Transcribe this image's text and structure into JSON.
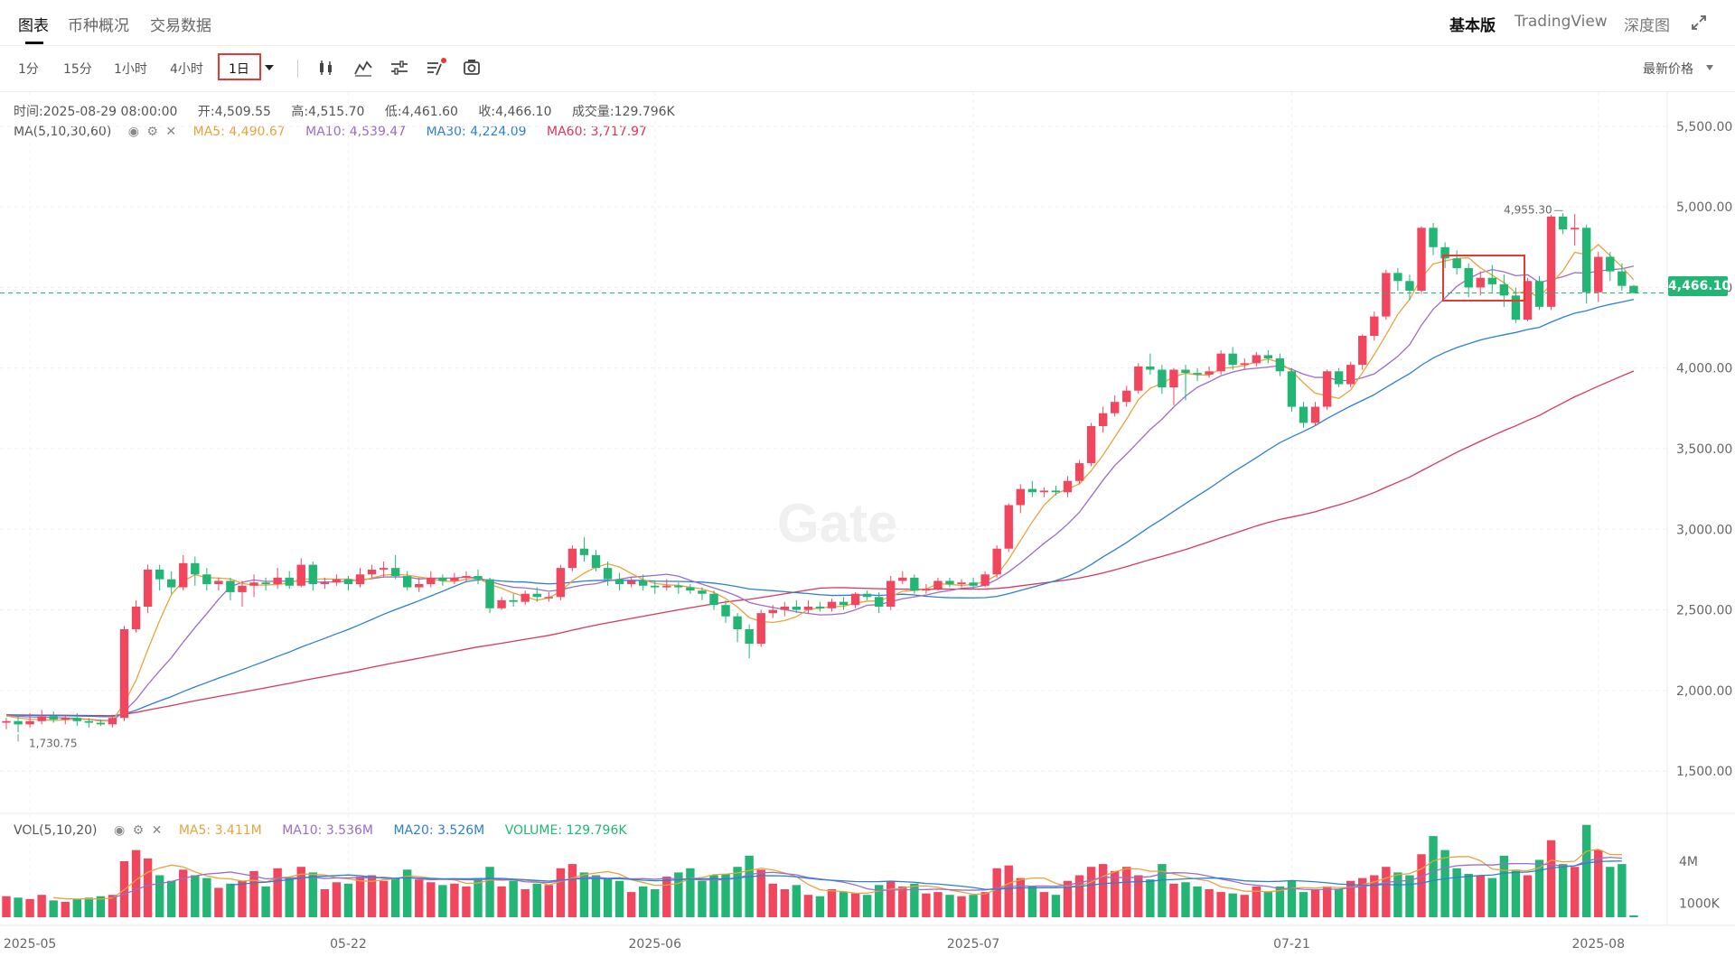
{
  "nav": {
    "tabs": [
      {
        "label": "图表",
        "active": true
      },
      {
        "label": "币种概况",
        "active": false
      },
      {
        "label": "交易数据",
        "active": false
      }
    ],
    "right": {
      "basic": "基本版",
      "tv": "TradingView",
      "depth": "深度图"
    }
  },
  "toolbar": {
    "timeframes": [
      "1分",
      "15分",
      "1小时",
      "4小时",
      "1日"
    ],
    "selected_timeframe": "1日",
    "price_type": "最新价格"
  },
  "info": {
    "time_label": "时间:",
    "time": "2025-08-29 08:00:00",
    "open_label": "开:",
    "open": "4,509.55",
    "high_label": "高:",
    "high": "4,515.70",
    "low_label": "低:",
    "low": "4,461.60",
    "close_label": "收:",
    "close": "4,466.10",
    "volume_label": "成交量:",
    "volume": "129.796K",
    "ma_title": "MA(5,10,30,60)",
    "ma5": "MA5: 4,490.67",
    "ma10": "MA10: 4,539.47",
    "ma30": "MA30: 4,224.09",
    "ma60": "MA60: 3,717.97",
    "vol_title": "VOL(5,10,20)",
    "vol_ma5": "MA5: 3.411M",
    "vol_ma10": "MA10: 3.536M",
    "vol_ma20": "MA20: 3.526M",
    "vol_volume": "VOLUME: 129.796K"
  },
  "colors": {
    "up": "#f0475e",
    "down": "#22b573",
    "ma5": "#e8a33c",
    "ma10": "#9a6dc9",
    "ma30": "#2c7fd6",
    "ma60": "#d9375b"
  },
  "chart_data": {
    "type": "candlestick",
    "title": "",
    "x_ticks": [
      "2025-05",
      "05-22",
      "2025-06",
      "2025-07",
      "07-21",
      "2025-08"
    ],
    "y_ticks": [
      "5,500.00",
      "5,000.00",
      "4,500.00",
      "4,000.00",
      "3,500.00",
      "3,000.00",
      "2,500.00",
      "2,000.00",
      "1,500.00"
    ],
    "ylim": [
      1400,
      5600
    ],
    "vol_ticks": [
      "4M",
      "1000K"
    ],
    "last_price": "4,466.10",
    "annotations": {
      "high": "4,955.30",
      "low": "1,730.75"
    },
    "candles": [
      {
        "o": 1800,
        "c": 1810,
        "h": 1830,
        "l": 1760,
        "v": 1.5
      },
      {
        "o": 1810,
        "c": 1790,
        "h": 1840,
        "l": 1740,
        "v": 1.4
      },
      {
        "o": 1790,
        "c": 1810,
        "h": 1860,
        "l": 1770,
        "v": 1.3
      },
      {
        "o": 1810,
        "c": 1840,
        "h": 1880,
        "l": 1790,
        "v": 1.6
      },
      {
        "o": 1840,
        "c": 1820,
        "h": 1870,
        "l": 1800,
        "v": 1.2
      },
      {
        "o": 1820,
        "c": 1830,
        "h": 1850,
        "l": 1790,
        "v": 1.1
      },
      {
        "o": 1830,
        "c": 1810,
        "h": 1860,
        "l": 1780,
        "v": 1.3
      },
      {
        "o": 1810,
        "c": 1800,
        "h": 1830,
        "l": 1770,
        "v": 1.4
      },
      {
        "o": 1800,
        "c": 1790,
        "h": 1820,
        "l": 1780,
        "v": 1.5
      },
      {
        "o": 1790,
        "c": 1830,
        "h": 1850,
        "l": 1770,
        "v": 1.6
      },
      {
        "o": 1830,
        "c": 2380,
        "h": 2400,
        "l": 1810,
        "v": 4.0
      },
      {
        "o": 2380,
        "c": 2520,
        "h": 2560,
        "l": 2360,
        "v": 4.8
      },
      {
        "o": 2520,
        "c": 2750,
        "h": 2780,
        "l": 2480,
        "v": 4.2
      },
      {
        "o": 2750,
        "c": 2690,
        "h": 2780,
        "l": 2620,
        "v": 3.0
      },
      {
        "o": 2690,
        "c": 2640,
        "h": 2740,
        "l": 2600,
        "v": 2.6
      },
      {
        "o": 2640,
        "c": 2790,
        "h": 2840,
        "l": 2620,
        "v": 3.4
      },
      {
        "o": 2790,
        "c": 2720,
        "h": 2830,
        "l": 2650,
        "v": 3.0
      },
      {
        "o": 2720,
        "c": 2660,
        "h": 2760,
        "l": 2620,
        "v": 2.8
      },
      {
        "o": 2660,
        "c": 2680,
        "h": 2700,
        "l": 2620,
        "v": 2.1
      },
      {
        "o": 2680,
        "c": 2610,
        "h": 2700,
        "l": 2560,
        "v": 2.4
      },
      {
        "o": 2610,
        "c": 2650,
        "h": 2680,
        "l": 2520,
        "v": 2.6
      },
      {
        "o": 2650,
        "c": 2670,
        "h": 2720,
        "l": 2580,
        "v": 3.3
      },
      {
        "o": 2670,
        "c": 2660,
        "h": 2700,
        "l": 2620,
        "v": 2.2
      },
      {
        "o": 2660,
        "c": 2700,
        "h": 2760,
        "l": 2630,
        "v": 3.5
      },
      {
        "o": 2700,
        "c": 2650,
        "h": 2740,
        "l": 2630,
        "v": 2.8
      },
      {
        "o": 2650,
        "c": 2780,
        "h": 2820,
        "l": 2640,
        "v": 3.6
      },
      {
        "o": 2780,
        "c": 2660,
        "h": 2800,
        "l": 2620,
        "v": 3.2
      },
      {
        "o": 2660,
        "c": 2670,
        "h": 2700,
        "l": 2630,
        "v": 2.0
      },
      {
        "o": 2670,
        "c": 2690,
        "h": 2720,
        "l": 2650,
        "v": 2.5
      },
      {
        "o": 2690,
        "c": 2660,
        "h": 2710,
        "l": 2620,
        "v": 2.4
      },
      {
        "o": 2660,
        "c": 2720,
        "h": 2760,
        "l": 2640,
        "v": 2.9
      },
      {
        "o": 2720,
        "c": 2750,
        "h": 2780,
        "l": 2700,
        "v": 3.0
      },
      {
        "o": 2750,
        "c": 2760,
        "h": 2800,
        "l": 2700,
        "v": 2.6
      },
      {
        "o": 2760,
        "c": 2710,
        "h": 2840,
        "l": 2690,
        "v": 2.8
      },
      {
        "o": 2710,
        "c": 2640,
        "h": 2740,
        "l": 2620,
        "v": 3.4
      },
      {
        "o": 2640,
        "c": 2660,
        "h": 2700,
        "l": 2610,
        "v": 2.7
      },
      {
        "o": 2660,
        "c": 2700,
        "h": 2740,
        "l": 2640,
        "v": 2.5
      },
      {
        "o": 2700,
        "c": 2680,
        "h": 2720,
        "l": 2650,
        "v": 2.3
      },
      {
        "o": 2680,
        "c": 2700,
        "h": 2730,
        "l": 2660,
        "v": 2.4
      },
      {
        "o": 2700,
        "c": 2710,
        "h": 2740,
        "l": 2670,
        "v": 2.2
      },
      {
        "o": 2710,
        "c": 2690,
        "h": 2750,
        "l": 2660,
        "v": 2.8
      },
      {
        "o": 2690,
        "c": 2510,
        "h": 2700,
        "l": 2480,
        "v": 3.6
      },
      {
        "o": 2510,
        "c": 2560,
        "h": 2580,
        "l": 2500,
        "v": 2.2
      },
      {
        "o": 2560,
        "c": 2550,
        "h": 2600,
        "l": 2520,
        "v": 2.6
      },
      {
        "o": 2550,
        "c": 2600,
        "h": 2620,
        "l": 2530,
        "v": 2.0
      },
      {
        "o": 2600,
        "c": 2580,
        "h": 2640,
        "l": 2550,
        "v": 2.4
      },
      {
        "o": 2580,
        "c": 2580,
        "h": 2610,
        "l": 2550,
        "v": 2.3
      },
      {
        "o": 2580,
        "c": 2760,
        "h": 2780,
        "l": 2560,
        "v": 3.5
      },
      {
        "o": 2760,
        "c": 2880,
        "h": 2900,
        "l": 2740,
        "v": 3.8
      },
      {
        "o": 2880,
        "c": 2840,
        "h": 2950,
        "l": 2800,
        "v": 3.2
      },
      {
        "o": 2840,
        "c": 2760,
        "h": 2870,
        "l": 2740,
        "v": 3.0
      },
      {
        "o": 2760,
        "c": 2690,
        "h": 2800,
        "l": 2650,
        "v": 2.8
      },
      {
        "o": 2690,
        "c": 2660,
        "h": 2730,
        "l": 2620,
        "v": 2.6
      },
      {
        "o": 2660,
        "c": 2680,
        "h": 2700,
        "l": 2640,
        "v": 1.8
      },
      {
        "o": 2680,
        "c": 2650,
        "h": 2720,
        "l": 2620,
        "v": 2.2
      },
      {
        "o": 2650,
        "c": 2640,
        "h": 2680,
        "l": 2600,
        "v": 2.0
      },
      {
        "o": 2640,
        "c": 2650,
        "h": 2690,
        "l": 2620,
        "v": 2.9
      },
      {
        "o": 2650,
        "c": 2640,
        "h": 2670,
        "l": 2600,
        "v": 3.2
      },
      {
        "o": 2640,
        "c": 2620,
        "h": 2660,
        "l": 2600,
        "v": 3.5
      },
      {
        "o": 2620,
        "c": 2600,
        "h": 2640,
        "l": 2560,
        "v": 2.6
      },
      {
        "o": 2600,
        "c": 2530,
        "h": 2620,
        "l": 2500,
        "v": 3.0
      },
      {
        "o": 2530,
        "c": 2460,
        "h": 2560,
        "l": 2420,
        "v": 3.1
      },
      {
        "o": 2460,
        "c": 2380,
        "h": 2480,
        "l": 2300,
        "v": 3.6
      },
      {
        "o": 2380,
        "c": 2290,
        "h": 2410,
        "l": 2200,
        "v": 4.4
      },
      {
        "o": 2290,
        "c": 2480,
        "h": 2500,
        "l": 2270,
        "v": 3.4
      },
      {
        "o": 2480,
        "c": 2500,
        "h": 2530,
        "l": 2450,
        "v": 2.4
      },
      {
        "o": 2500,
        "c": 2520,
        "h": 2550,
        "l": 2460,
        "v": 2.0
      },
      {
        "o": 2520,
        "c": 2500,
        "h": 2560,
        "l": 2480,
        "v": 2.3
      },
      {
        "o": 2500,
        "c": 2520,
        "h": 2560,
        "l": 2480,
        "v": 1.6
      },
      {
        "o": 2520,
        "c": 2510,
        "h": 2550,
        "l": 2490,
        "v": 1.5
      },
      {
        "o": 2510,
        "c": 2550,
        "h": 2570,
        "l": 2490,
        "v": 2.0
      },
      {
        "o": 2550,
        "c": 2530,
        "h": 2580,
        "l": 2500,
        "v": 1.8
      },
      {
        "o": 2530,
        "c": 2600,
        "h": 2610,
        "l": 2510,
        "v": 1.7
      },
      {
        "o": 2600,
        "c": 2580,
        "h": 2620,
        "l": 2560,
        "v": 1.6
      },
      {
        "o": 2580,
        "c": 2520,
        "h": 2610,
        "l": 2480,
        "v": 2.3
      },
      {
        "o": 2520,
        "c": 2680,
        "h": 2710,
        "l": 2500,
        "v": 2.6
      },
      {
        "o": 2680,
        "c": 2700,
        "h": 2740,
        "l": 2660,
        "v": 2.2
      },
      {
        "o": 2700,
        "c": 2620,
        "h": 2720,
        "l": 2600,
        "v": 2.4
      },
      {
        "o": 2620,
        "c": 2630,
        "h": 2660,
        "l": 2600,
        "v": 1.7
      },
      {
        "o": 2630,
        "c": 2680,
        "h": 2700,
        "l": 2620,
        "v": 1.8
      },
      {
        "o": 2680,
        "c": 2660,
        "h": 2700,
        "l": 2640,
        "v": 1.6
      },
      {
        "o": 2660,
        "c": 2670,
        "h": 2690,
        "l": 2640,
        "v": 1.5
      },
      {
        "o": 2670,
        "c": 2650,
        "h": 2700,
        "l": 2630,
        "v": 1.6
      },
      {
        "o": 2650,
        "c": 2720,
        "h": 2740,
        "l": 2640,
        "v": 1.8
      },
      {
        "o": 2720,
        "c": 2880,
        "h": 2900,
        "l": 2700,
        "v": 3.5
      },
      {
        "o": 2880,
        "c": 3150,
        "h": 3160,
        "l": 2860,
        "v": 3.7
      },
      {
        "o": 3150,
        "c": 3250,
        "h": 3280,
        "l": 3100,
        "v": 2.8
      },
      {
        "o": 3250,
        "c": 3230,
        "h": 3300,
        "l": 3200,
        "v": 2.2
      },
      {
        "o": 3230,
        "c": 3240,
        "h": 3260,
        "l": 3200,
        "v": 1.8
      },
      {
        "o": 3240,
        "c": 3230,
        "h": 3270,
        "l": 3210,
        "v": 1.6
      },
      {
        "o": 3230,
        "c": 3300,
        "h": 3330,
        "l": 3200,
        "v": 2.6
      },
      {
        "o": 3300,
        "c": 3410,
        "h": 3430,
        "l": 3280,
        "v": 3.0
      },
      {
        "o": 3410,
        "c": 3640,
        "h": 3660,
        "l": 3390,
        "v": 3.6
      },
      {
        "o": 3640,
        "c": 3720,
        "h": 3760,
        "l": 3600,
        "v": 3.8
      },
      {
        "o": 3720,
        "c": 3790,
        "h": 3830,
        "l": 3700,
        "v": 3.3
      },
      {
        "o": 3790,
        "c": 3860,
        "h": 3890,
        "l": 3760,
        "v": 3.6
      },
      {
        "o": 3860,
        "c": 4010,
        "h": 4030,
        "l": 3840,
        "v": 3.0
      },
      {
        "o": 4010,
        "c": 3990,
        "h": 4090,
        "l": 3960,
        "v": 2.7
      },
      {
        "o": 3990,
        "c": 3880,
        "h": 4020,
        "l": 3840,
        "v": 3.8
      },
      {
        "o": 3880,
        "c": 3990,
        "h": 4000,
        "l": 3770,
        "v": 2.4
      },
      {
        "o": 3990,
        "c": 3970,
        "h": 4020,
        "l": 3800,
        "v": 2.5
      },
      {
        "o": 3970,
        "c": 3960,
        "h": 4000,
        "l": 3920,
        "v": 2.2
      },
      {
        "o": 3960,
        "c": 3980,
        "h": 4010,
        "l": 3940,
        "v": 2.0
      },
      {
        "o": 3980,
        "c": 4090,
        "h": 4110,
        "l": 3960,
        "v": 1.8
      },
      {
        "o": 4090,
        "c": 4020,
        "h": 4130,
        "l": 3990,
        "v": 1.7
      },
      {
        "o": 4020,
        "c": 4030,
        "h": 4060,
        "l": 3990,
        "v": 1.6
      },
      {
        "o": 4030,
        "c": 4080,
        "h": 4100,
        "l": 4010,
        "v": 2.2
      },
      {
        "o": 4080,
        "c": 4060,
        "h": 4110,
        "l": 4030,
        "v": 1.8
      },
      {
        "o": 4060,
        "c": 3980,
        "h": 4090,
        "l": 3950,
        "v": 2.2
      },
      {
        "o": 3980,
        "c": 3760,
        "h": 4000,
        "l": 3730,
        "v": 2.6
      },
      {
        "o": 3760,
        "c": 3660,
        "h": 3790,
        "l": 3630,
        "v": 1.8
      },
      {
        "o": 3660,
        "c": 3760,
        "h": 3790,
        "l": 3640,
        "v": 2.0
      },
      {
        "o": 3760,
        "c": 3980,
        "h": 3990,
        "l": 3740,
        "v": 2.2
      },
      {
        "o": 3980,
        "c": 3900,
        "h": 4000,
        "l": 3880,
        "v": 2.0
      },
      {
        "o": 3900,
        "c": 4020,
        "h": 4040,
        "l": 3880,
        "v": 2.6
      },
      {
        "o": 4020,
        "c": 4200,
        "h": 4210,
        "l": 3990,
        "v": 2.8
      },
      {
        "o": 4200,
        "c": 4320,
        "h": 4350,
        "l": 4170,
        "v": 3.0
      },
      {
        "o": 4320,
        "c": 4590,
        "h": 4610,
        "l": 4300,
        "v": 3.6
      },
      {
        "o": 4590,
        "c": 4540,
        "h": 4620,
        "l": 4480,
        "v": 3.2
      },
      {
        "o": 4540,
        "c": 4480,
        "h": 4580,
        "l": 4420,
        "v": 3.0
      },
      {
        "o": 4480,
        "c": 4870,
        "h": 4880,
        "l": 4460,
        "v": 4.5
      },
      {
        "o": 4870,
        "c": 4750,
        "h": 4900,
        "l": 4700,
        "v": 5.8
      },
      {
        "o": 4750,
        "c": 4680,
        "h": 4780,
        "l": 4620,
        "v": 4.8
      },
      {
        "o": 4680,
        "c": 4620,
        "h": 4730,
        "l": 4580,
        "v": 3.5
      },
      {
        "o": 4620,
        "c": 4500,
        "h": 4650,
        "l": 4440,
        "v": 3.1
      },
      {
        "o": 4500,
        "c": 4560,
        "h": 4600,
        "l": 4450,
        "v": 3.0
      },
      {
        "o": 4560,
        "c": 4520,
        "h": 4640,
        "l": 4470,
        "v": 2.8
      },
      {
        "o": 4520,
        "c": 4450,
        "h": 4580,
        "l": 4380,
        "v": 4.4
      },
      {
        "o": 4450,
        "c": 4300,
        "h": 4500,
        "l": 4280,
        "v": 3.4
      },
      {
        "o": 4300,
        "c": 4540,
        "h": 4560,
        "l": 4290,
        "v": 3.0
      },
      {
        "o": 4540,
        "c": 4380,
        "h": 4570,
        "l": 4360,
        "v": 4.1
      },
      {
        "o": 4380,
        "c": 4940,
        "h": 4950,
        "l": 4360,
        "v": 5.5
      },
      {
        "o": 4940,
        "c": 4860,
        "h": 4960,
        "l": 4830,
        "v": 3.8
      },
      {
        "o": 4860,
        "c": 4870,
        "h": 4955,
        "l": 4760,
        "v": 3.6
      },
      {
        "o": 4870,
        "c": 4470,
        "h": 4890,
        "l": 4400,
        "v": 6.6
      },
      {
        "o": 4470,
        "c": 4690,
        "h": 4720,
        "l": 4410,
        "v": 4.8
      },
      {
        "o": 4690,
        "c": 4600,
        "h": 4720,
        "l": 4540,
        "v": 3.6
      },
      {
        "o": 4600,
        "c": 4510,
        "h": 4650,
        "l": 4480,
        "v": 3.8
      },
      {
        "o": 4510,
        "c": 4466,
        "h": 4516,
        "l": 4462,
        "v": 0.13
      }
    ]
  }
}
